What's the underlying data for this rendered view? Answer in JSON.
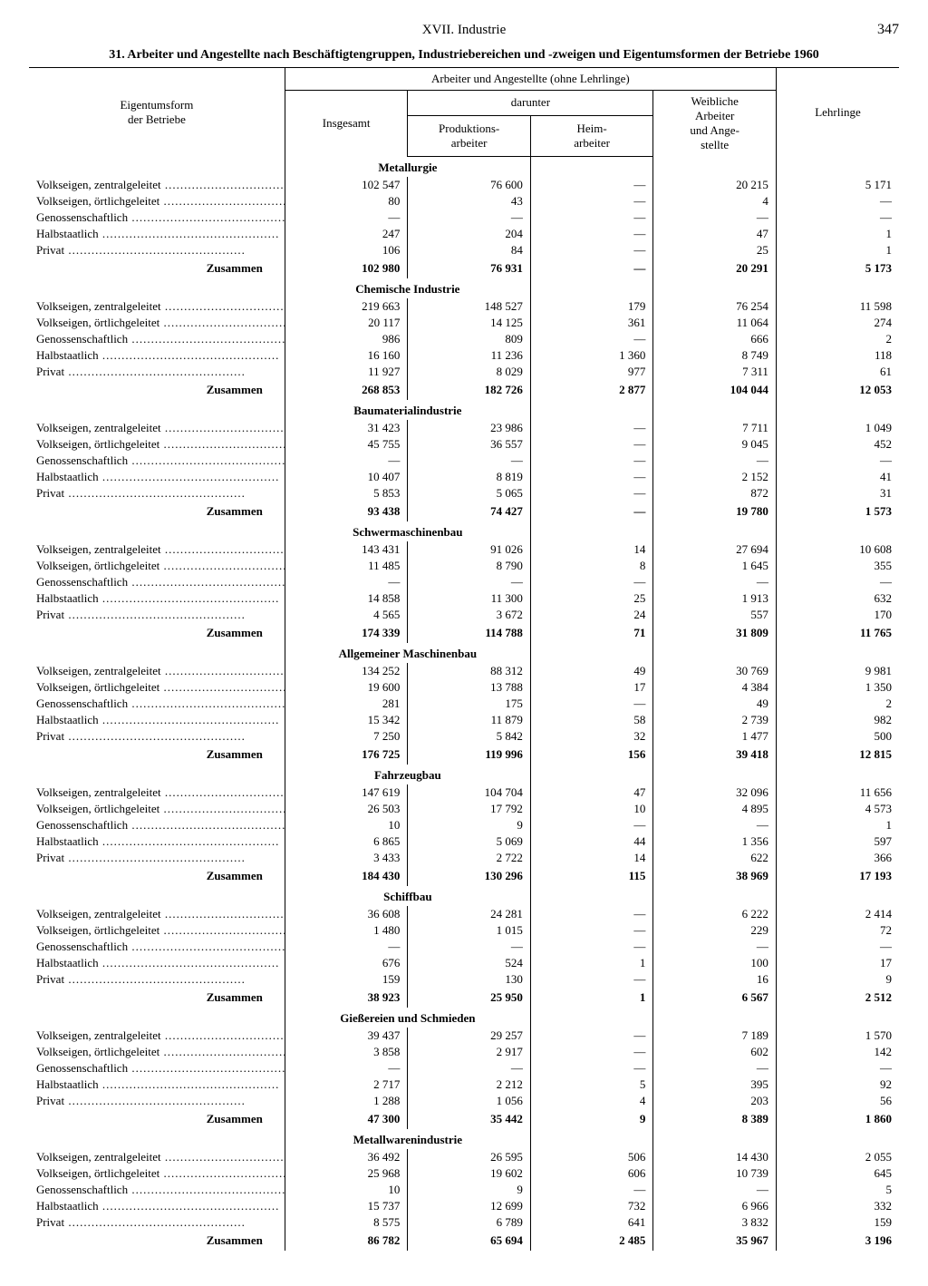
{
  "page": {
    "chapter": "XVII. Industrie",
    "number": "347",
    "title": "31. Arbeiter und Angestellte nach Beschäftigtengruppen, Industriebereichen und -zweigen und Eigentumsformen der Betriebe 1960"
  },
  "headers": {
    "row_label_1": "Eigentumsform",
    "row_label_2": "der Betriebe",
    "group_top": "Arbeiter und Angestellte (ohne Lehrlinge)",
    "insgesamt": "Insgesamt",
    "darunter": "darunter",
    "prod": "Produktions-\narbeiter",
    "heim": "Heim-\narbeiter",
    "weib": "Weibliche\nArbeiter\nund Ange-\nstellte",
    "lehr": "Lehrlinge"
  },
  "row_labels": {
    "r0": "Volkseigen, zentralgeleitet",
    "r1": "Volkseigen, örtlichgeleitet",
    "r2": "Genossenschaftlich",
    "r3": "Halbstaatlich",
    "r4": "Privat",
    "sum": "Zusammen"
  },
  "sections": [
    {
      "title": "Metallurgie",
      "rows": [
        [
          "102 547",
          "76 600",
          "—",
          "20 215",
          "5 171"
        ],
        [
          "80",
          "43",
          "—",
          "4",
          "—"
        ],
        [
          "—",
          "—",
          "—",
          "—",
          "—"
        ],
        [
          "247",
          "204",
          "—",
          "47",
          "1"
        ],
        [
          "106",
          "84",
          "—",
          "25",
          "1"
        ]
      ],
      "sum": [
        "102 980",
        "76 931",
        "—",
        "20 291",
        "5 173"
      ]
    },
    {
      "title": "Chemische Industrie",
      "rows": [
        [
          "219 663",
          "148 527",
          "179",
          "76 254",
          "11 598"
        ],
        [
          "20 117",
          "14 125",
          "361",
          "11 064",
          "274"
        ],
        [
          "986",
          "809",
          "—",
          "666",
          "2"
        ],
        [
          "16 160",
          "11 236",
          "1 360",
          "8 749",
          "118"
        ],
        [
          "11 927",
          "8 029",
          "977",
          "7 311",
          "61"
        ]
      ],
      "sum": [
        "268 853",
        "182 726",
        "2 877",
        "104 044",
        "12 053"
      ]
    },
    {
      "title": "Baumaterialindustrie",
      "rows": [
        [
          "31 423",
          "23 986",
          "—",
          "7 711",
          "1 049"
        ],
        [
          "45 755",
          "36 557",
          "—",
          "9 045",
          "452"
        ],
        [
          "—",
          "—",
          "—",
          "—",
          "—"
        ],
        [
          "10 407",
          "8 819",
          "—",
          "2 152",
          "41"
        ],
        [
          "5 853",
          "5 065",
          "—",
          "872",
          "31"
        ]
      ],
      "sum": [
        "93 438",
        "74 427",
        "—",
        "19 780",
        "1 573"
      ]
    },
    {
      "title": "Schwermaschinenbau",
      "rows": [
        [
          "143 431",
          "91 026",
          "14",
          "27 694",
          "10 608"
        ],
        [
          "11 485",
          "8 790",
          "8",
          "1 645",
          "355"
        ],
        [
          "—",
          "—",
          "—",
          "—",
          "—"
        ],
        [
          "14 858",
          "11 300",
          "25",
          "1 913",
          "632"
        ],
        [
          "4 565",
          "3 672",
          "24",
          "557",
          "170"
        ]
      ],
      "sum": [
        "174 339",
        "114 788",
        "71",
        "31 809",
        "11 765"
      ]
    },
    {
      "title": "Allgemeiner Maschinenbau",
      "rows": [
        [
          "134 252",
          "88 312",
          "49",
          "30 769",
          "9 981"
        ],
        [
          "19 600",
          "13 788",
          "17",
          "4 384",
          "1 350"
        ],
        [
          "281",
          "175",
          "—",
          "49",
          "2"
        ],
        [
          "15 342",
          "11 879",
          "58",
          "2 739",
          "982"
        ],
        [
          "7 250",
          "5 842",
          "32",
          "1 477",
          "500"
        ]
      ],
      "sum": [
        "176 725",
        "119 996",
        "156",
        "39 418",
        "12 815"
      ]
    },
    {
      "title": "Fahrzeugbau",
      "rows": [
        [
          "147 619",
          "104 704",
          "47",
          "32 096",
          "11 656"
        ],
        [
          "26 503",
          "17 792",
          "10",
          "4 895",
          "4 573"
        ],
        [
          "10",
          "9",
          "—",
          "—",
          "1"
        ],
        [
          "6 865",
          "5 069",
          "44",
          "1 356",
          "597"
        ],
        [
          "3 433",
          "2 722",
          "14",
          "622",
          "366"
        ]
      ],
      "sum": [
        "184 430",
        "130 296",
        "115",
        "38 969",
        "17 193"
      ]
    },
    {
      "title": "Schiffbau",
      "rows": [
        [
          "36 608",
          "24 281",
          "—",
          "6 222",
          "2 414"
        ],
        [
          "1 480",
          "1 015",
          "—",
          "229",
          "72"
        ],
        [
          "—",
          "—",
          "—",
          "—",
          "—"
        ],
        [
          "676",
          "524",
          "1",
          "100",
          "17"
        ],
        [
          "159",
          "130",
          "—",
          "16",
          "9"
        ]
      ],
      "sum": [
        "38 923",
        "25 950",
        "1",
        "6 567",
        "2 512"
      ]
    },
    {
      "title": "Gießereien und Schmieden",
      "rows": [
        [
          "39 437",
          "29 257",
          "—",
          "7 189",
          "1 570"
        ],
        [
          "3 858",
          "2 917",
          "—",
          "602",
          "142"
        ],
        [
          "—",
          "—",
          "—",
          "—",
          "—"
        ],
        [
          "2 717",
          "2 212",
          "5",
          "395",
          "92"
        ],
        [
          "1 288",
          "1 056",
          "4",
          "203",
          "56"
        ]
      ],
      "sum": [
        "47 300",
        "35 442",
        "9",
        "8 389",
        "1 860"
      ]
    },
    {
      "title": "Metallwarenindustrie",
      "rows": [
        [
          "36 492",
          "26 595",
          "506",
          "14 430",
          "2 055"
        ],
        [
          "25 968",
          "19 602",
          "606",
          "10 739",
          "645"
        ],
        [
          "10",
          "9",
          "—",
          "—",
          "5"
        ],
        [
          "15 737",
          "12 699",
          "732",
          "6 966",
          "332"
        ],
        [
          "8 575",
          "6 789",
          "641",
          "3 832",
          "159"
        ]
      ],
      "sum": [
        "86 782",
        "65 694",
        "2 485",
        "35 967",
        "3 196"
      ]
    }
  ]
}
